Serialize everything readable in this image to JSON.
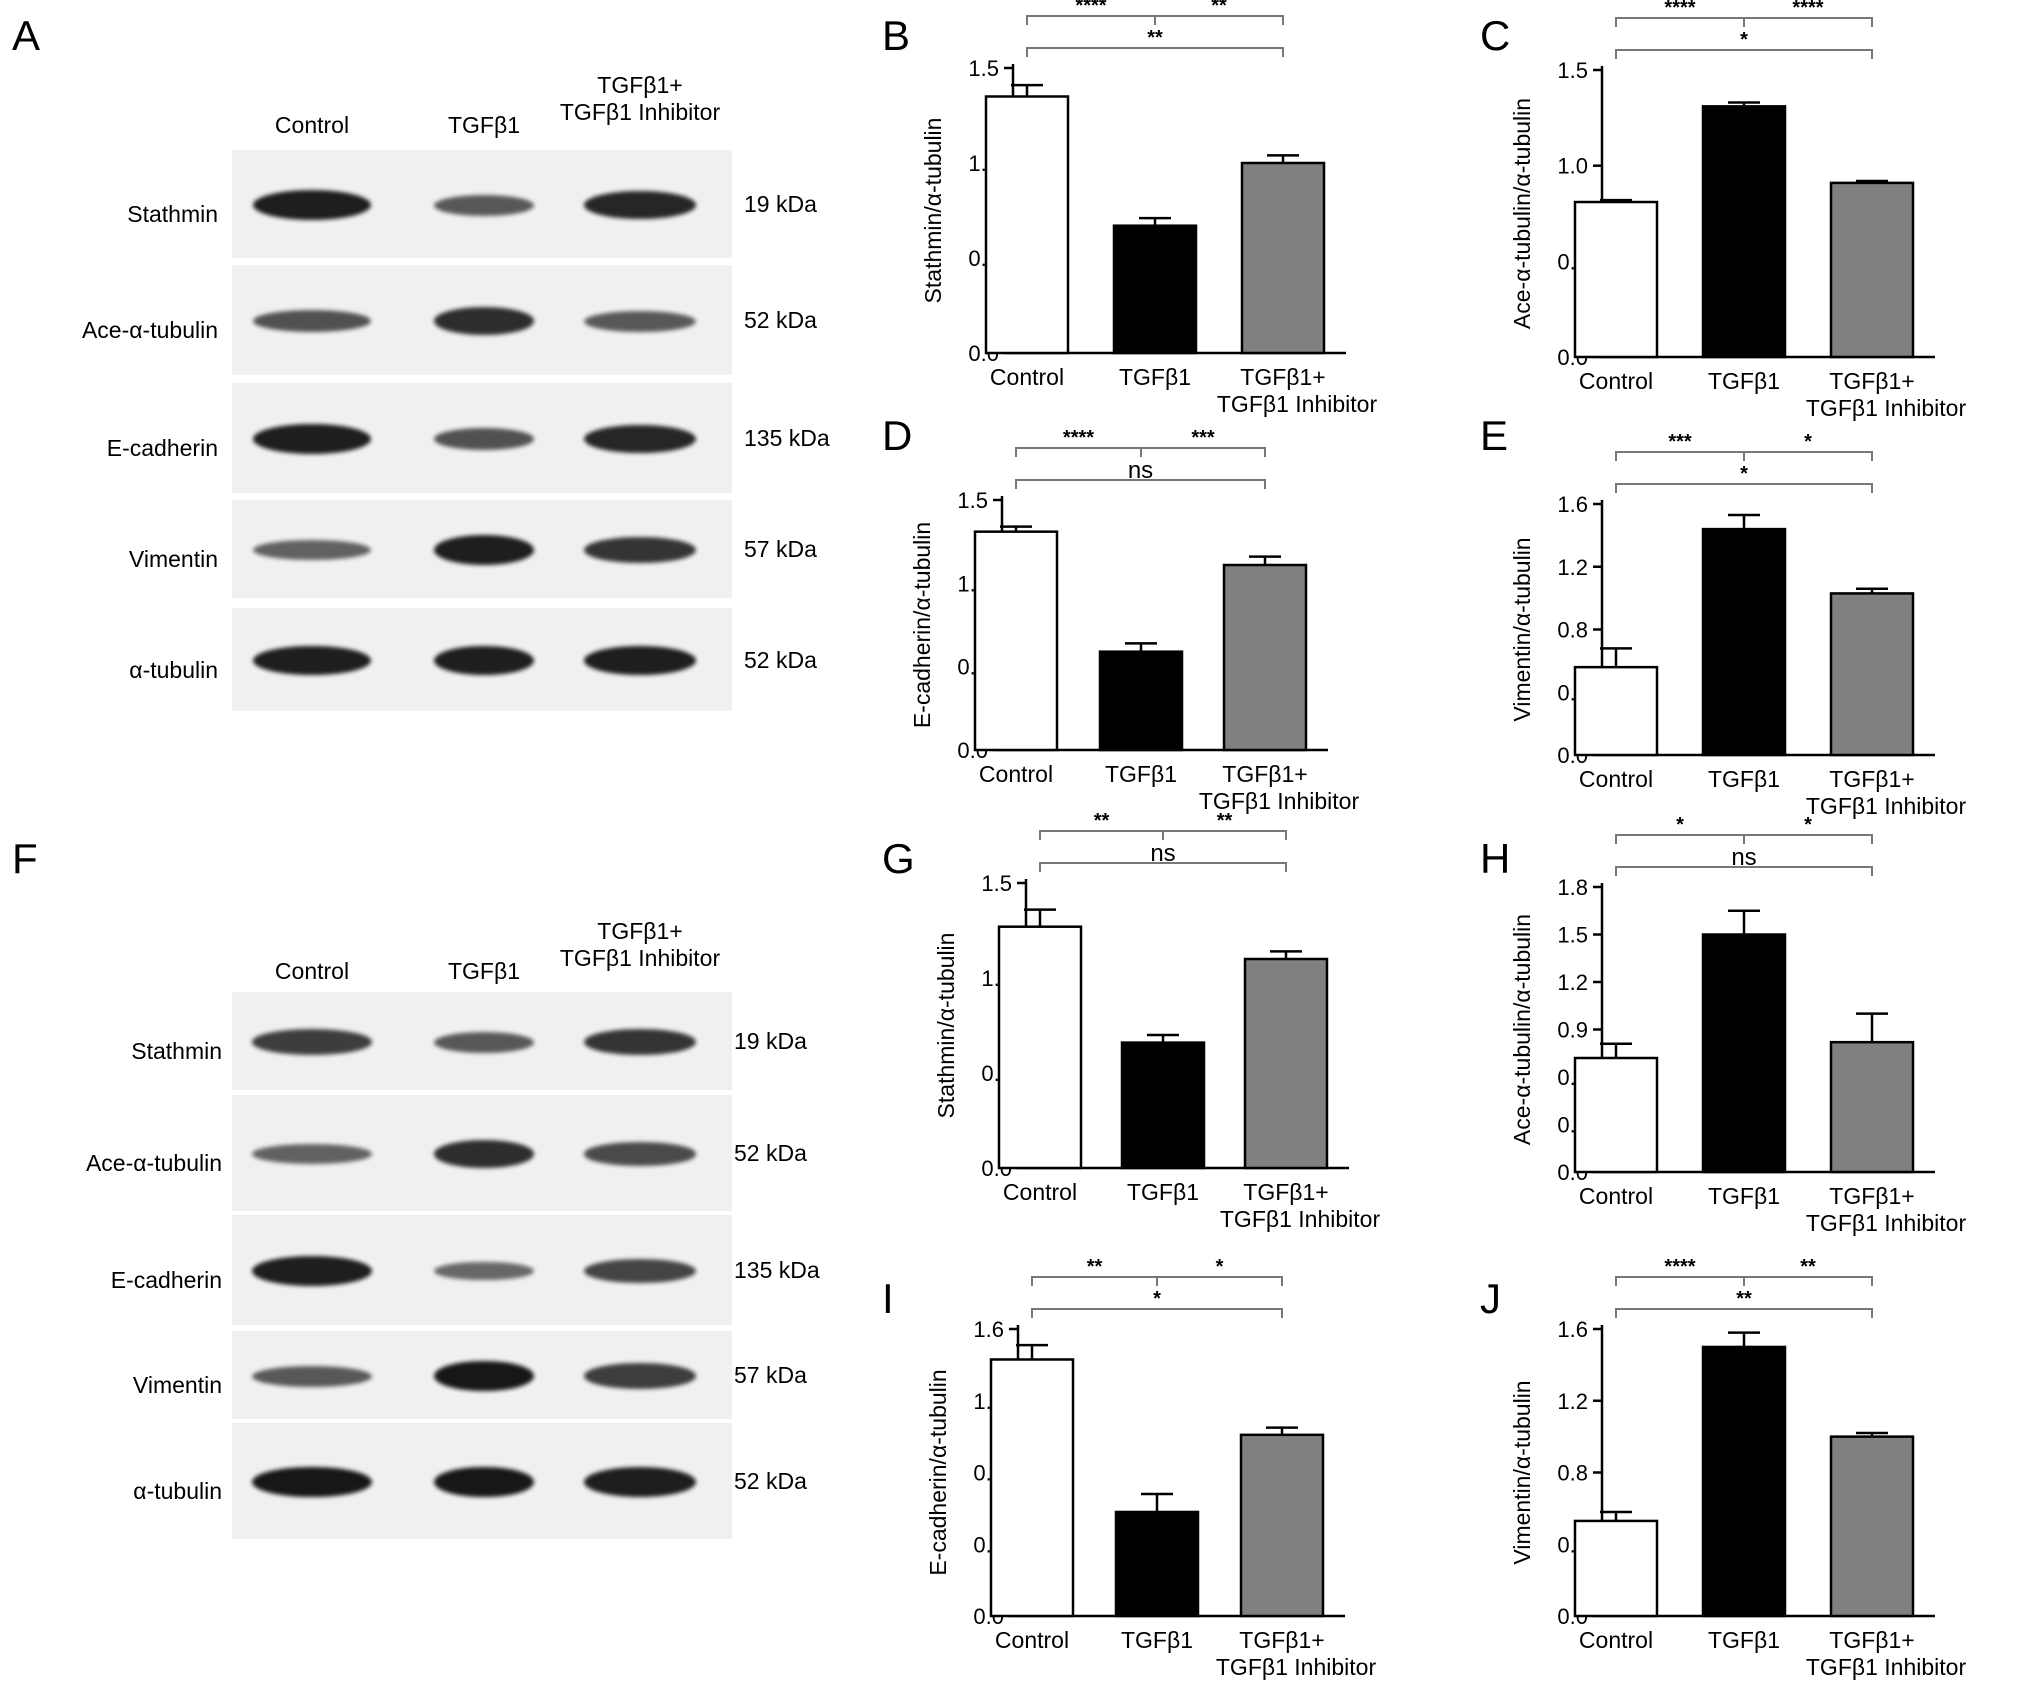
{
  "panels": {
    "A": "A",
    "B": "B",
    "C": "C",
    "D": "D",
    "E": "E",
    "F": "F",
    "G": "G",
    "H": "H",
    "I": "I",
    "J": "J"
  },
  "blots": [
    {
      "id": "A",
      "lanes": [
        "Control",
        "TGFβ1",
        "TGFβ1+\nTGFβ1 Inhibitor"
      ],
      "rows": [
        {
          "label": "Stathmin",
          "kda": "19 kDa",
          "intensity": [
            0.9,
            0.5,
            0.85
          ]
        },
        {
          "label": "Ace-α-tubulin",
          "kda": "52 kDa",
          "intensity": [
            0.55,
            0.8,
            0.5
          ]
        },
        {
          "label": "E-cadherin",
          "kda": "135 kDa",
          "intensity": [
            0.9,
            0.55,
            0.85
          ]
        },
        {
          "label": "Vimentin",
          "kda": "57 kDa",
          "intensity": [
            0.45,
            0.9,
            0.75
          ]
        },
        {
          "label": "α-tubulin",
          "kda": "52 kDa",
          "intensity": [
            0.9,
            0.9,
            0.9
          ]
        }
      ]
    },
    {
      "id": "F",
      "lanes": [
        "Control",
        "TGFβ1",
        "TGFβ1+\nTGFβ1 Inhibitor"
      ],
      "rows": [
        {
          "label": "Stathmin",
          "kda": "19 kDa",
          "intensity": [
            0.7,
            0.5,
            0.75
          ]
        },
        {
          "label": "Ace-α-tubulin",
          "kda": "52 kDa",
          "intensity": [
            0.45,
            0.8,
            0.6
          ]
        },
        {
          "label": "E-cadherin",
          "kda": "135 kDa",
          "intensity": [
            0.9,
            0.4,
            0.65
          ]
        },
        {
          "label": "Vimentin",
          "kda": "57 kDa",
          "intensity": [
            0.5,
            0.95,
            0.7
          ]
        },
        {
          "label": "α-tubulin",
          "kda": "52 kDa",
          "intensity": [
            0.95,
            0.95,
            0.9
          ]
        }
      ]
    }
  ],
  "chart_data": [
    {
      "id": "B",
      "type": "bar",
      "categories": [
        "Control",
        "TGFβ1",
        "TGFβ1+\nTGFβ1 Inhibitor"
      ],
      "values": [
        1.35,
        0.67,
        1.0
      ],
      "errors": [
        0.06,
        0.04,
        0.04
      ],
      "ylabel": "Stathmin/α-tubulin",
      "ylim": [
        0,
        1.5
      ],
      "yticks": [
        "0.0",
        "0.5",
        "1.0",
        "1.5"
      ],
      "significance": [
        {
          "from": 0,
          "to": 1,
          "label": "****",
          "level": 2
        },
        {
          "from": 1,
          "to": 2,
          "label": "**",
          "level": 2
        },
        {
          "from": 0,
          "to": 2,
          "label": "**",
          "level": 1
        }
      ]
    },
    {
      "id": "C",
      "type": "bar",
      "categories": [
        "Control",
        "TGFβ1",
        "TGFβ1+\nTGFβ1 Inhibitor"
      ],
      "values": [
        0.81,
        1.31,
        0.91
      ],
      "errors": [
        0.01,
        0.02,
        0.01
      ],
      "ylabel": "Ace-α-tubulin/α-tubulin",
      "ylim": [
        0,
        1.5
      ],
      "yticks": [
        "0.0",
        "0.5",
        "1.0",
        "1.5"
      ],
      "significance": [
        {
          "from": 0,
          "to": 1,
          "label": "****",
          "level": 2
        },
        {
          "from": 1,
          "to": 2,
          "label": "****",
          "level": 2
        },
        {
          "from": 0,
          "to": 2,
          "label": "*",
          "level": 1
        }
      ]
    },
    {
      "id": "D",
      "type": "bar",
      "categories": [
        "Control",
        "TGFβ1",
        "TGFβ1+\nTGFβ1 Inhibitor"
      ],
      "values": [
        1.31,
        0.59,
        1.11
      ],
      "errors": [
        0.03,
        0.05,
        0.05
      ],
      "ylabel": "E-cadherin/α-tubulin",
      "ylim": [
        0,
        1.5
      ],
      "yticks": [
        "0.0",
        "0.5",
        "1.0",
        "1.5"
      ],
      "significance": [
        {
          "from": 0,
          "to": 1,
          "label": "****",
          "level": 2
        },
        {
          "from": 1,
          "to": 2,
          "label": "***",
          "level": 2
        },
        {
          "from": 0,
          "to": 2,
          "label": "ns",
          "level": 1
        }
      ]
    },
    {
      "id": "E",
      "type": "bar",
      "categories": [
        "Control",
        "TGFβ1",
        "TGFβ1+\nTGFβ1 Inhibitor"
      ],
      "values": [
        0.56,
        1.44,
        1.03
      ],
      "errors": [
        0.12,
        0.09,
        0.03
      ],
      "ylabel": "Vimentin/α-tubulin",
      "ylim": [
        0,
        1.6
      ],
      "yticks": [
        "0.0",
        "0.4",
        "0.8",
        "1.2",
        "1.6"
      ],
      "significance": [
        {
          "from": 0,
          "to": 1,
          "label": "***",
          "level": 2
        },
        {
          "from": 1,
          "to": 2,
          "label": "*",
          "level": 2
        },
        {
          "from": 0,
          "to": 2,
          "label": "*",
          "level": 1
        }
      ]
    },
    {
      "id": "G",
      "type": "bar",
      "categories": [
        "Control",
        "TGFβ1",
        "TGFβ1+\nTGFβ1 Inhibitor"
      ],
      "values": [
        1.27,
        0.66,
        1.1
      ],
      "errors": [
        0.09,
        0.04,
        0.04
      ],
      "ylabel": "Stathmin/α-tubulin",
      "ylim": [
        0,
        1.5
      ],
      "yticks": [
        "0.0",
        "0.5",
        "1.0",
        "1.5"
      ],
      "significance": [
        {
          "from": 0,
          "to": 1,
          "label": "**",
          "level": 2
        },
        {
          "from": 1,
          "to": 2,
          "label": "**",
          "level": 2
        },
        {
          "from": 0,
          "to": 2,
          "label": "ns",
          "level": 1
        }
      ]
    },
    {
      "id": "H",
      "type": "bar",
      "categories": [
        "Control",
        "TGFβ1",
        "TGFβ1+\nTGFβ1 Inhibitor"
      ],
      "values": [
        0.72,
        1.5,
        0.82
      ],
      "errors": [
        0.09,
        0.15,
        0.18
      ],
      "ylabel": "Ace-α-tubulin/α-tubulin",
      "ylim": [
        0,
        1.8
      ],
      "yticks": [
        "0.0",
        "0.3",
        "0.6",
        "0.9",
        "1.2",
        "1.5",
        "1.8"
      ],
      "significance": [
        {
          "from": 0,
          "to": 1,
          "label": "*",
          "level": 2
        },
        {
          "from": 1,
          "to": 2,
          "label": "*",
          "level": 2
        },
        {
          "from": 0,
          "to": 2,
          "label": "ns",
          "level": 1
        }
      ]
    },
    {
      "id": "I",
      "type": "bar",
      "categories": [
        "Control",
        "TGFβ1",
        "TGFβ1+\nTGFβ1 Inhibitor"
      ],
      "values": [
        1.43,
        0.58,
        1.01
      ],
      "errors": [
        0.08,
        0.1,
        0.04
      ],
      "ylabel": "E-cadherin/α-tubulin",
      "ylim": [
        0,
        1.6
      ],
      "yticks": [
        "0.0",
        "0.4",
        "0.8",
        "1.2",
        "1.6"
      ],
      "significance": [
        {
          "from": 0,
          "to": 1,
          "label": "**",
          "level": 2
        },
        {
          "from": 1,
          "to": 2,
          "label": "*",
          "level": 2
        },
        {
          "from": 0,
          "to": 2,
          "label": "*",
          "level": 1
        }
      ]
    },
    {
      "id": "J",
      "type": "bar",
      "categories": [
        "Control",
        "TGFβ1",
        "TGFβ1+\nTGFβ1 Inhibitor"
      ],
      "values": [
        0.53,
        1.5,
        1.0
      ],
      "errors": [
        0.05,
        0.08,
        0.02
      ],
      "ylabel": "Vimentin/α-tubulin",
      "ylim": [
        0,
        1.6
      ],
      "yticks": [
        "0.0",
        "0.4",
        "0.8",
        "1.2",
        "1.6"
      ],
      "significance": [
        {
          "from": 0,
          "to": 1,
          "label": "****",
          "level": 2
        },
        {
          "from": 1,
          "to": 2,
          "label": "**",
          "level": 2
        },
        {
          "from": 0,
          "to": 2,
          "label": "**",
          "level": 1
        }
      ]
    }
  ],
  "colors": {
    "control": "#ffffff",
    "tgfb1": "#000000",
    "inhibitor": "#808080",
    "axis": "#000000",
    "bracket": "#777777"
  }
}
